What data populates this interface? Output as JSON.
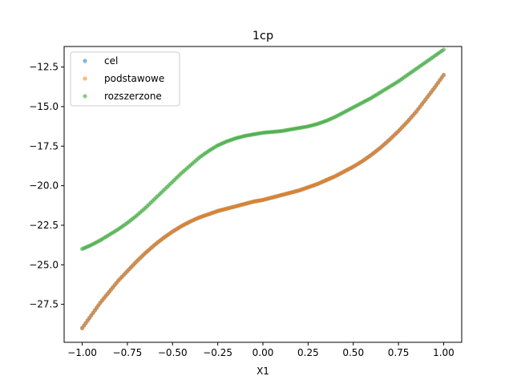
{
  "chart_data": {
    "type": "scatter",
    "title": "1cp",
    "xlabel": "X1",
    "ylabel": "",
    "xlim": [
      -1.1,
      1.1
    ],
    "ylim": [
      -29.9,
      -11.2
    ],
    "xticks": [
      -1.0,
      -0.75,
      -0.5,
      -0.25,
      0.0,
      0.25,
      0.5,
      0.75,
      1.0
    ],
    "xtick_labels": [
      "−1.00",
      "−0.75",
      "−0.50",
      "−0.25",
      "0.00",
      "0.25",
      "0.50",
      "0.75",
      "1.00"
    ],
    "yticks": [
      -27.5,
      -25.0,
      -22.5,
      -20.0,
      -17.5,
      -15.0,
      -12.5
    ],
    "ytick_labels": [
      "−27.5",
      "−25.0",
      "−22.5",
      "−20.0",
      "−17.5",
      "−15.0",
      "−12.5"
    ],
    "grid": false,
    "legend_position": "top-left",
    "x": [
      -1.0,
      -0.95,
      -0.9,
      -0.85,
      -0.8,
      -0.75,
      -0.7,
      -0.65,
      -0.6,
      -0.55,
      -0.5,
      -0.45,
      -0.4,
      -0.35,
      -0.3,
      -0.25,
      -0.2,
      -0.15,
      -0.1,
      -0.05,
      0.0,
      0.05,
      0.1,
      0.15,
      0.2,
      0.25,
      0.3,
      0.35,
      0.4,
      0.45,
      0.5,
      0.55,
      0.6,
      0.65,
      0.7,
      0.75,
      0.8,
      0.85,
      0.9,
      0.95,
      1.0
    ],
    "series": [
      {
        "name": "cel",
        "color": "#1f77b4",
        "values": [
          -29.0,
          -28.2,
          -27.4,
          -26.7,
          -26.0,
          -25.4,
          -24.8,
          -24.25,
          -23.75,
          -23.3,
          -22.9,
          -22.55,
          -22.25,
          -22.0,
          -21.8,
          -21.6,
          -21.45,
          -21.3,
          -21.15,
          -21.0,
          -20.9,
          -20.75,
          -20.6,
          -20.45,
          -20.3,
          -20.1,
          -19.9,
          -19.65,
          -19.4,
          -19.1,
          -18.8,
          -18.45,
          -18.05,
          -17.6,
          -17.1,
          -16.55,
          -15.95,
          -15.3,
          -14.55,
          -13.8,
          -13.0
        ]
      },
      {
        "name": "podstawowe",
        "color": "#ff7f0e",
        "values": [
          -29.0,
          -28.2,
          -27.4,
          -26.7,
          -26.0,
          -25.4,
          -24.8,
          -24.25,
          -23.75,
          -23.3,
          -22.9,
          -22.55,
          -22.25,
          -22.0,
          -21.8,
          -21.6,
          -21.45,
          -21.3,
          -21.15,
          -21.0,
          -20.9,
          -20.75,
          -20.6,
          -20.45,
          -20.3,
          -20.1,
          -19.9,
          -19.65,
          -19.4,
          -19.1,
          -18.8,
          -18.45,
          -18.05,
          -17.6,
          -17.1,
          -16.55,
          -15.95,
          -15.3,
          -14.55,
          -13.8,
          -13.0
        ]
      },
      {
        "name": "rozszerzone",
        "color": "#2ca02c",
        "values": [
          -24.0,
          -23.75,
          -23.45,
          -23.1,
          -22.75,
          -22.35,
          -21.9,
          -21.4,
          -20.85,
          -20.3,
          -19.75,
          -19.2,
          -18.7,
          -18.2,
          -17.8,
          -17.45,
          -17.2,
          -17.0,
          -16.85,
          -16.75,
          -16.65,
          -16.6,
          -16.55,
          -16.45,
          -16.35,
          -16.25,
          -16.1,
          -15.9,
          -15.65,
          -15.35,
          -15.05,
          -14.75,
          -14.45,
          -14.1,
          -13.75,
          -13.4,
          -13.0,
          -12.6,
          -12.2,
          -11.8,
          -11.4
        ]
      }
    ]
  }
}
